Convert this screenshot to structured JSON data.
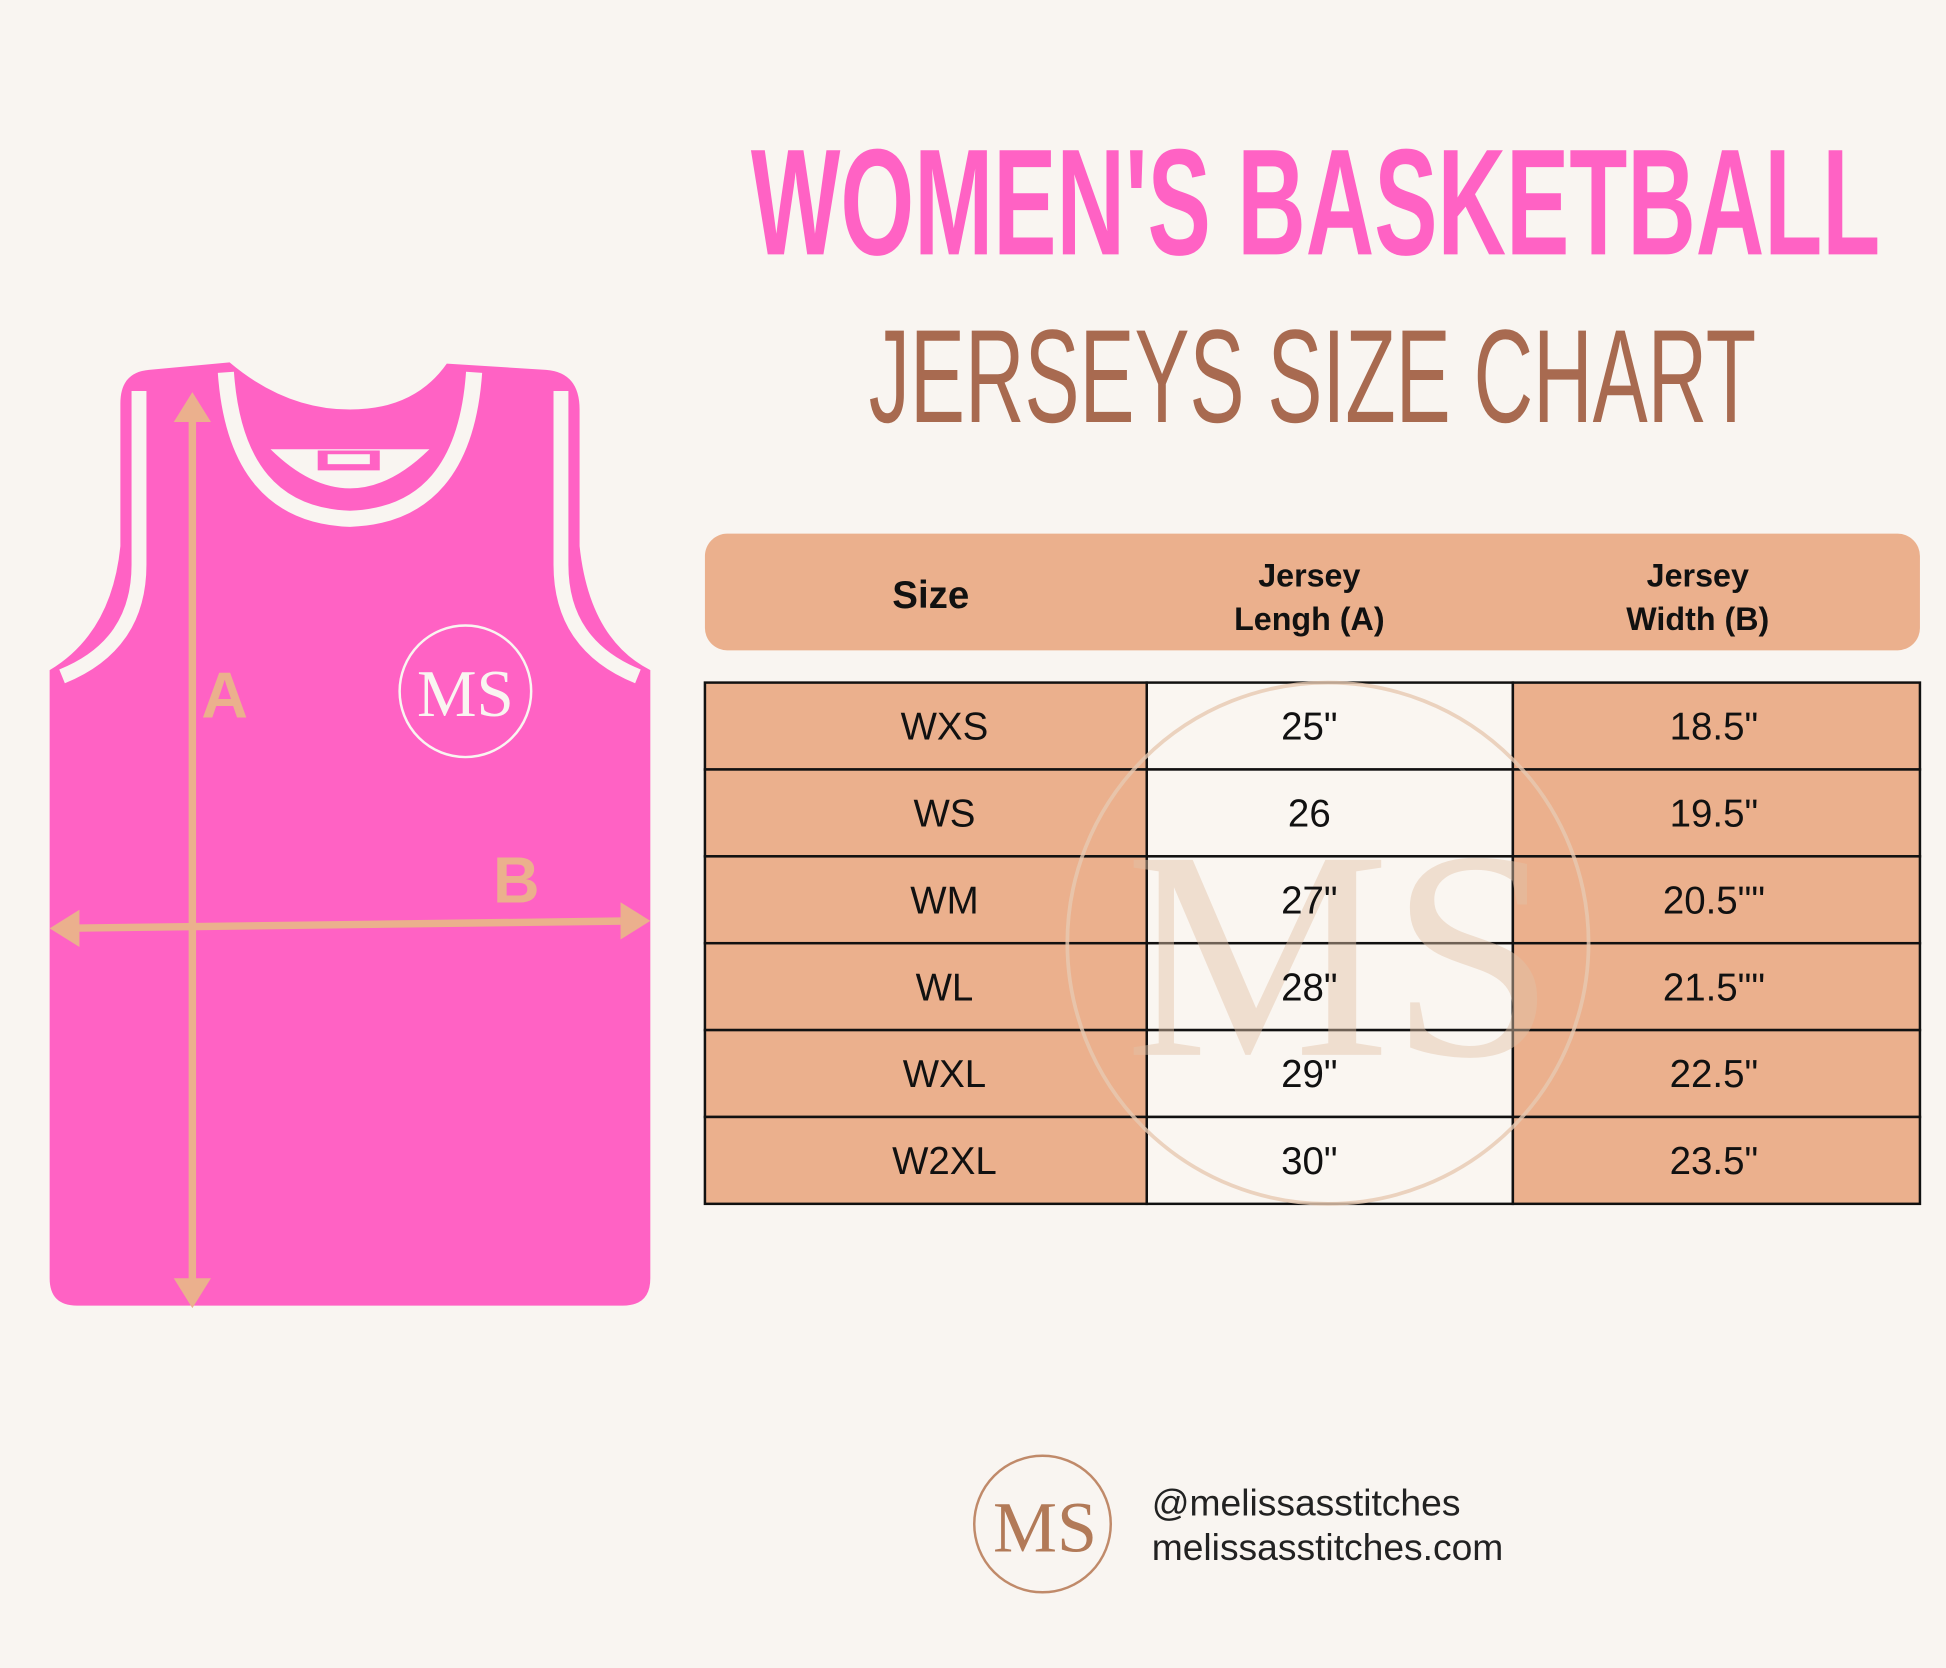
{
  "header": {
    "title": "WOMEN'S BASKETBALL",
    "subtitle": "JERSEYS SIZE CHART"
  },
  "diagram": {
    "label_a": "A",
    "label_b": "B",
    "logo": "MS"
  },
  "table": {
    "columns": [
      [
        "Size"
      ],
      [
        "Jersey",
        "Lengh (A)"
      ],
      [
        "Jersey",
        "Width (B)"
      ]
    ],
    "rows": [
      [
        "WXS",
        "25\"",
        "18.5\""
      ],
      [
        "WS",
        "26",
        "19.5\""
      ],
      [
        "WM",
        "27\"",
        "20.5\"\""
      ],
      [
        "WL",
        "28\"",
        "21.5\"\""
      ],
      [
        "WXL",
        "29\"",
        "22.5\""
      ],
      [
        "W2XL",
        "30\"",
        "23.5\""
      ]
    ]
  },
  "footer": {
    "logo": "MS",
    "handle": "@melissasstitches",
    "website": "melissasstitches.com"
  }
}
